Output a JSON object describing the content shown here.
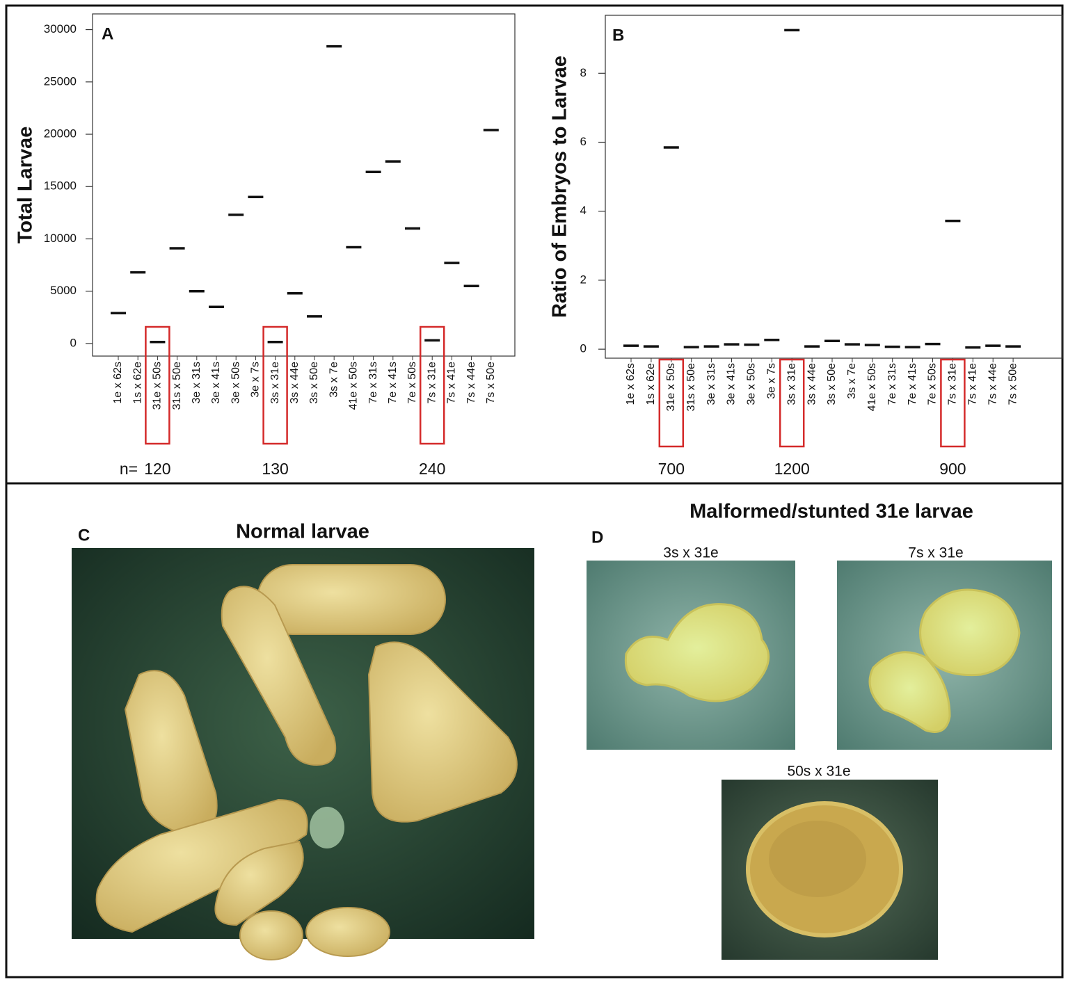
{
  "chart_data": [
    {
      "type": "dash",
      "panel_label": "A",
      "y_label": "Total Larvae",
      "categories": [
        "1e x 62s",
        "1s x 62e",
        "31e x 50s",
        "31s x 50e",
        "3e x 31s",
        "3e x 41s",
        "3e x 50s",
        "3e x 7s",
        "3s x 31e",
        "3s x 44e",
        "3s x 50e",
        "3s x 7e",
        "41e x 50s",
        "7e x 31s",
        "7e x 41s",
        "7e x 50s",
        "7s x 31e",
        "7s x 41e",
        "7s x 44e",
        "7s x 50e"
      ],
      "values": [
        2900,
        6800,
        150,
        9100,
        5000,
        3500,
        12300,
        14000,
        150,
        4800,
        2600,
        28400,
        9200,
        16400,
        17400,
        11000,
        300,
        7700,
        5500,
        20400
      ],
      "color": "#111111",
      "ylim": [
        -1200,
        31500
      ],
      "yticks": [
        0,
        5000,
        10000,
        15000,
        20000,
        25000,
        30000
      ],
      "highlighted": [
        "31e x 50s",
        "3s x 31e",
        "7s x 31e"
      ],
      "highlight_color": "#d42a2a",
      "n_label": "n=",
      "sample_sizes": [
        120,
        130,
        240
      ]
    },
    {
      "type": "dash",
      "panel_label": "B",
      "y_label": "Ratio of Embryos to Larvae",
      "categories": [
        "1e x 62s",
        "1s x 62e",
        "31e x 50s",
        "31s x 50e",
        "3e x 31s",
        "3e x 41s",
        "3e x 50s",
        "3e x 7s",
        "3s x 31e",
        "3s x 44e",
        "3s x 50e",
        "3s x 7e",
        "41e x 50s",
        "7e x 31s",
        "7e x 41s",
        "7e x 50s",
        "7s x 31e",
        "7s x 41e",
        "7s x 44e",
        "7s x 50e"
      ],
      "values": [
        0.1,
        0.08,
        5.85,
        0.06,
        0.08,
        0.14,
        0.13,
        0.27,
        9.25,
        0.08,
        0.24,
        0.14,
        0.12,
        0.07,
        0.06,
        0.15,
        3.72,
        0.05,
        0.1,
        0.08
      ],
      "color": "#111111",
      "ylim": [
        -0.26,
        9.68
      ],
      "yticks": [
        0,
        2,
        4,
        6,
        8
      ],
      "highlighted": [
        "31e x 50s",
        "3s x 31e",
        "7s x 31e"
      ],
      "highlight_color": "#d42a2a",
      "sample_sizes": [
        700,
        1200,
        900
      ]
    }
  ],
  "photos": {
    "c": {
      "panel_label": "C",
      "title": "Normal larvae"
    },
    "d": {
      "panel_label": "D",
      "title": "Malformed/stunted 31e larvae",
      "captions": [
        "3s x 31e",
        "7s x 31e",
        "50s x 31e"
      ]
    }
  }
}
